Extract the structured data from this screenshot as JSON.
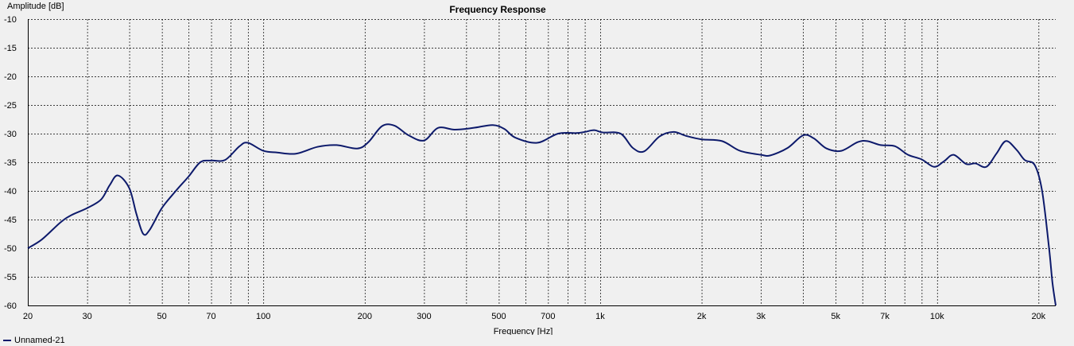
{
  "chart_data": {
    "type": "line",
    "title": "Frequency Response",
    "xlabel": "Frequency [Hz]",
    "ylabel": "Amplitude [dB]",
    "xscale": "log",
    "xlim": [
      20,
      22500
    ],
    "ylim": [
      -60,
      -10
    ],
    "grid": true,
    "x_ticks": [
      {
        "v": 20,
        "label": "20"
      },
      {
        "v": 30,
        "label": "30"
      },
      {
        "v": 50,
        "label": "50"
      },
      {
        "v": 70,
        "label": "70"
      },
      {
        "v": 100,
        "label": "100"
      },
      {
        "v": 200,
        "label": "200"
      },
      {
        "v": 300,
        "label": "300"
      },
      {
        "v": 500,
        "label": "500"
      },
      {
        "v": 700,
        "label": "700"
      },
      {
        "v": 1000,
        "label": "1k"
      },
      {
        "v": 2000,
        "label": "2k"
      },
      {
        "v": 3000,
        "label": "3k"
      },
      {
        "v": 5000,
        "label": "5k"
      },
      {
        "v": 7000,
        "label": "7k"
      },
      {
        "v": 10000,
        "label": "10k"
      },
      {
        "v": 20000,
        "label": "20k"
      }
    ],
    "y_ticks": [
      -10,
      -15,
      -20,
      -25,
      -30,
      -35,
      -40,
      -45,
      -50,
      -55,
      -60
    ],
    "legend_position": "bottom-left",
    "series": [
      {
        "name": "Unnamed-21",
        "color": "#0d1a6b",
        "points": [
          [
            20,
            -50
          ],
          [
            22,
            -48.5
          ],
          [
            25,
            -45.5
          ],
          [
            27,
            -44.2
          ],
          [
            30,
            -43
          ],
          [
            33,
            -41.5
          ],
          [
            35,
            -39
          ],
          [
            37,
            -37.3
          ],
          [
            40,
            -39.5
          ],
          [
            42,
            -44
          ],
          [
            44,
            -47.5
          ],
          [
            46,
            -46.8
          ],
          [
            50,
            -43
          ],
          [
            55,
            -40
          ],
          [
            60,
            -37.5
          ],
          [
            65,
            -35
          ],
          [
            70,
            -34.7
          ],
          [
            77,
            -34.6
          ],
          [
            85,
            -32.2
          ],
          [
            90,
            -31.6
          ],
          [
            100,
            -33
          ],
          [
            110,
            -33.3
          ],
          [
            125,
            -33.5
          ],
          [
            145,
            -32.3
          ],
          [
            165,
            -32
          ],
          [
            190,
            -32.6
          ],
          [
            205,
            -31.5
          ],
          [
            225,
            -28.7
          ],
          [
            245,
            -28.6
          ],
          [
            270,
            -30.3
          ],
          [
            300,
            -31.2
          ],
          [
            330,
            -29
          ],
          [
            370,
            -29.3
          ],
          [
            420,
            -29
          ],
          [
            480,
            -28.5
          ],
          [
            520,
            -29.2
          ],
          [
            560,
            -30.7
          ],
          [
            650,
            -31.6
          ],
          [
            750,
            -30
          ],
          [
            850,
            -29.9
          ],
          [
            900,
            -29.7
          ],
          [
            960,
            -29.4
          ],
          [
            1020,
            -29.8
          ],
          [
            1150,
            -30
          ],
          [
            1250,
            -32.5
          ],
          [
            1350,
            -33.1
          ],
          [
            1500,
            -30.5
          ],
          [
            1650,
            -29.7
          ],
          [
            1800,
            -30.4
          ],
          [
            2000,
            -31
          ],
          [
            2300,
            -31.3
          ],
          [
            2600,
            -33
          ],
          [
            3000,
            -33.7
          ],
          [
            3200,
            -33.8
          ],
          [
            3600,
            -32.5
          ],
          [
            4000,
            -30.3
          ],
          [
            4300,
            -30.8
          ],
          [
            4700,
            -32.6
          ],
          [
            5200,
            -33
          ],
          [
            5800,
            -31.5
          ],
          [
            6200,
            -31.3
          ],
          [
            6800,
            -32
          ],
          [
            7500,
            -32.2
          ],
          [
            8200,
            -33.7
          ],
          [
            9000,
            -34.5
          ],
          [
            9800,
            -35.8
          ],
          [
            10500,
            -34.8
          ],
          [
            11200,
            -33.7
          ],
          [
            12200,
            -35.3
          ],
          [
            13000,
            -35.2
          ],
          [
            14000,
            -35.8
          ],
          [
            15000,
            -33.5
          ],
          [
            16000,
            -31.3
          ],
          [
            17200,
            -32.8
          ],
          [
            18200,
            -34.6
          ],
          [
            19500,
            -35.5
          ],
          [
            20500,
            -40
          ],
          [
            21500,
            -50
          ],
          [
            22000,
            -56
          ],
          [
            22500,
            -60
          ]
        ]
      }
    ]
  }
}
